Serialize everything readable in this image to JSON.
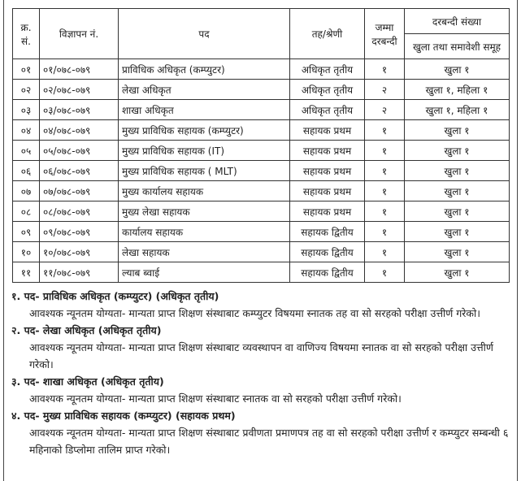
{
  "table": {
    "headers": {
      "sn": "क्र. सं.",
      "ad_no": "विज्ञापन नं.",
      "post": "पद",
      "level": "तह/श्रेणी",
      "total": "जम्मा दरबन्दी",
      "quota": "दरबन्दी संख्या",
      "quota_sub": "खुला तथा समावेशी समूह"
    },
    "rows": [
      {
        "sn": "०१",
        "ad_no": "०१/०७८-०७९",
        "post": "प्राविधिक अधिकृत (कम्प्युटर)",
        "level": "अधिकृत तृतीय",
        "total": "१",
        "quota": "खुला १"
      },
      {
        "sn": "०२",
        "ad_no": "०२/०७८-०७९",
        "post": "लेखा अधिकृत",
        "level": "अधिकृत तृतीय",
        "total": "२",
        "quota": "खुला १, महिला १"
      },
      {
        "sn": "०३",
        "ad_no": "०३/०७८-०७९",
        "post": "शाखा अधिकृत",
        "level": "अधिकृत तृतीय",
        "total": "२",
        "quota": "खुला १, महिला १"
      },
      {
        "sn": "०४",
        "ad_no": "०४/०७८-०७९",
        "post": "मुख्य प्राविधिक सहायक (कम्प्युटर)",
        "level": "सहायक प्रथम",
        "total": "१",
        "quota": "खुला १"
      },
      {
        "sn": "०५",
        "ad_no": "०५/०७८-०७९",
        "post": "मुख्य प्राविधिक सहायक (IT)",
        "level": "सहायक प्रथम",
        "total": "१",
        "quota": "खुला १"
      },
      {
        "sn": "०६",
        "ad_no": "०६/०७८-०७९",
        "post": "मुख्य प्राविधिक सहायक ( MLT)",
        "level": "सहायक प्रथम",
        "total": "१",
        "quota": "खुला १"
      },
      {
        "sn": "०७",
        "ad_no": "०७/०७८-०७९",
        "post": "मुख्य कार्यालय सहायक",
        "level": "सहायक प्रथम",
        "total": "१",
        "quota": "खुला १"
      },
      {
        "sn": "०८",
        "ad_no": "०८/०७८-०७९",
        "post": "मुख्य लेखा सहायक",
        "level": "सहायक प्रथम",
        "total": "१",
        "quota": "खुला १"
      },
      {
        "sn": "०९",
        "ad_no": "०९/०७८-०७९",
        "post": "कार्यालय सहायक",
        "level": "सहायक द्वितीय",
        "total": "१",
        "quota": "खुला १"
      },
      {
        "sn": "१०",
        "ad_no": "१०/०७८-०७९",
        "post": "लेखा सहायक",
        "level": "सहायक द्वितीय",
        "total": "१",
        "quota": "खुला १"
      },
      {
        "sn": "११",
        "ad_no": "११/०७८-०७९",
        "post": "ल्याब ब्वाई",
        "level": "सहायक द्वितीय",
        "total": "१",
        "quota": "खुला १"
      }
    ]
  },
  "notes": [
    {
      "title": "१. पद- प्राविधिक अधिकृत (कम्प्युटर) (अधिकृत तृतीय)",
      "text": "आवश्यक न्यूनतम योग्यता- मान्यता प्राप्त शिक्षण संस्थाबाट कम्प्युटर विषयमा स्नातक तह वा सो सरहको परीक्षा उत्तीर्ण गरेको।"
    },
    {
      "title": "२. पद- लेखा अधिकृत (अधिकृत तृतीय)",
      "text": "आवश्यक न्यूनतम योग्यता- मान्यता प्राप्त शिक्षण संस्थाबाट व्यवस्थापन वा वाणिज्य विषयमा स्नातक वा सो सरहको परीक्षा उत्तीर्ण गरेको।"
    },
    {
      "title": "३. पद- शाखा अधिकृत (अधिकृत तृतीय)",
      "text": "आवश्यक न्यूनतम योग्यता- मान्यता प्राप्त शिक्षण संस्थाबाट स्नातक वा सो सरहको परीक्षा उत्तीर्ण गरेको।"
    },
    {
      "title": "४. पद- मुख्य प्राविधिक सहायक (कम्प्युटर) (सहायक प्रथम)",
      "text": "आवश्यक न्यूनतम योग्यता- मान्यता प्राप्त शिक्षण संस्थाबाट प्रवीणता प्रमाणपत्र तह वा सो सरहको परीक्षा उत्तीर्ण र कम्प्युटर सम्बन्धी ६ महिनाको डिप्लोमा तालिम प्राप्त गरेको।"
    }
  ]
}
